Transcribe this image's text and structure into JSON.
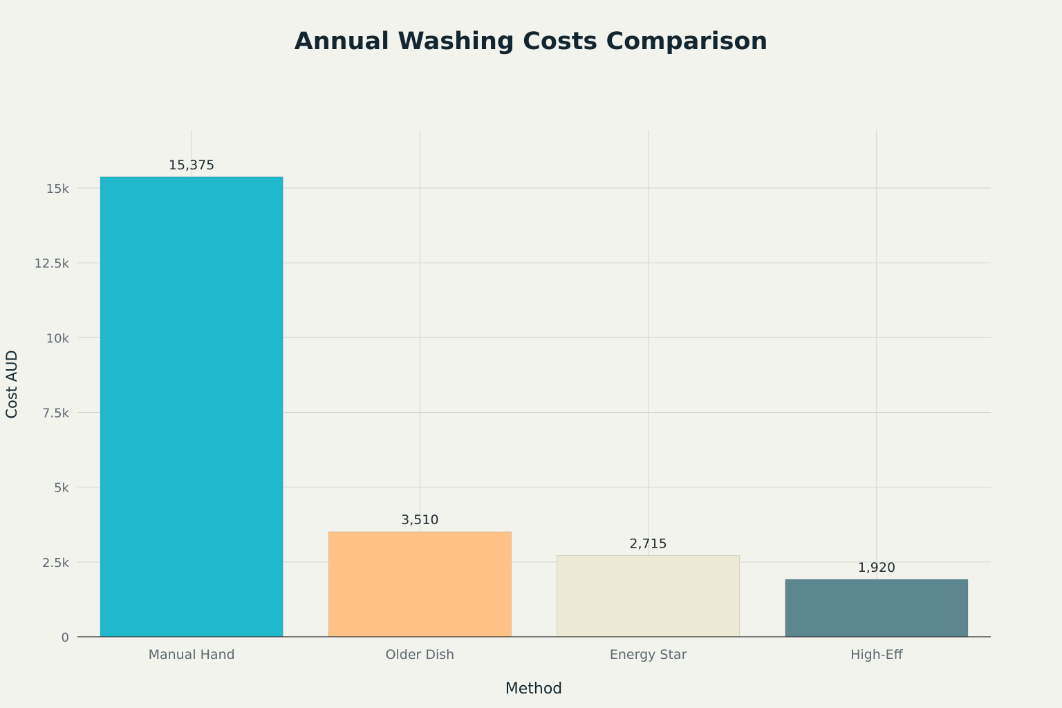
{
  "chart_data": {
    "type": "bar",
    "title": "Annual Washing Costs Comparison",
    "xlabel": "Method",
    "ylabel": "Cost AUD",
    "categories": [
      "Manual Hand",
      "Older Dish",
      "Energy Star",
      "High-Eff"
    ],
    "values": [
      15375,
      3510,
      2715,
      1920
    ],
    "data_labels": [
      "15,375",
      "3,510",
      "2,715",
      "1,920"
    ],
    "colors": [
      "#1fb8cd",
      "#ffc185",
      "#ece9d4",
      "#5d878f"
    ],
    "ylim": [
      0,
      16900
    ],
    "y_ticks": [
      0,
      2500,
      5000,
      7500,
      10000,
      12500,
      15000
    ],
    "y_tick_labels": [
      "0",
      "2.5k",
      "5k",
      "7.5k",
      "10k",
      "12.5k",
      "15k"
    ],
    "grid": true,
    "legend": "none"
  }
}
